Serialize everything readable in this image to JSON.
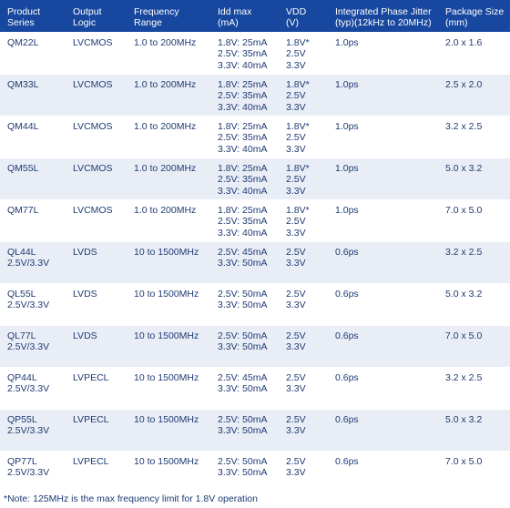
{
  "headers": [
    "Product\nSeries",
    "Output\nLogic",
    "Frequency\nRange",
    "Idd max\n(mA)",
    "VDD\n(V)",
    "Integrated Phase Jitter\n(typ)(12kHz to 20MHz)",
    "Package Size\n(mm)"
  ],
  "rows": [
    {
      "series": "QM22L",
      "logic": "LVCMOS",
      "range": "1.0 to 200MHz",
      "idd": "1.8V: 25mA\n2.5V: 35mA\n3.3V: 40mA",
      "vdd": "1.8V*\n2.5V\n3.3V",
      "jitter": "1.0ps",
      "pkg": "2.0 x 1.6"
    },
    {
      "series": "QM33L",
      "logic": "LVCMOS",
      "range": "1.0 to 200MHz",
      "idd": "1.8V: 25mA\n2.5V: 35mA\n3.3V: 40mA",
      "vdd": "1.8V*\n2.5V\n3.3V",
      "jitter": "1.0ps",
      "pkg": "2.5 x 2.0"
    },
    {
      "series": "QM44L",
      "logic": "LVCMOS",
      "range": "1.0 to 200MHz",
      "idd": "1.8V: 25mA\n2.5V: 35mA\n3.3V: 40mA",
      "vdd": "1.8V*\n2.5V\n3.3V",
      "jitter": "1.0ps",
      "pkg": "3.2 x 2.5"
    },
    {
      "series": "QM55L",
      "logic": "LVCMOS",
      "range": "1.0 to 200MHz",
      "idd": "1.8V: 25mA\n2.5V: 35mA\n3.3V: 40mA",
      "vdd": "1.8V*\n2.5V\n3.3V",
      "jitter": "1.0ps",
      "pkg": "5.0 x 3.2"
    },
    {
      "series": "QM77L",
      "logic": "LVCMOS",
      "range": "1.0 to 200MHz",
      "idd": "1.8V: 25mA\n2.5V: 35mA\n3.3V: 40mA",
      "vdd": "1.8V*\n2.5V\n3.3V",
      "jitter": "1.0ps",
      "pkg": "7.0 x 5.0"
    },
    {
      "series": "QL44L\n2.5V/3.3V",
      "logic": "LVDS",
      "range": "10 to 1500MHz",
      "idd": "2.5V: 45mA\n3.3V: 50mA",
      "vdd": "2.5V\n3.3V",
      "jitter": "0.6ps",
      "pkg": "3.2 x 2.5"
    },
    {
      "series": "QL55L\n2.5V/3.3V",
      "logic": "LVDS",
      "range": "10 to 1500MHz",
      "idd": "2.5V: 50mA\n3.3V: 50mA",
      "vdd": "2.5V\n3.3V",
      "jitter": "0.6ps",
      "pkg": "5.0 x 3.2"
    },
    {
      "series": "QL77L\n2.5V/3.3V",
      "logic": "LVDS",
      "range": "10 to 1500MHz",
      "idd": "2.5V: 50mA\n3.3V: 50mA",
      "vdd": "2.5V\n3.3V",
      "jitter": "0.6ps",
      "pkg": "7.0 x 5.0"
    },
    {
      "series": "QP44L\n2.5V/3.3V",
      "logic": "LVPECL",
      "range": "10 to 1500MHz",
      "idd": "2.5V: 45mA\n3.3V: 50mA",
      "vdd": "2.5V\n3.3V",
      "jitter": "0.6ps",
      "pkg": "3.2 x 2.5"
    },
    {
      "series": "QP55L\n2.5V/3.3V",
      "logic": "LVPECL",
      "range": "10 to 1500MHz",
      "idd": "2.5V: 50mA\n3.3V: 50mA",
      "vdd": "2.5V\n3.3V",
      "jitter": "0.6ps",
      "pkg": "5.0 x 3.2"
    },
    {
      "series": "QP77L\n2.5V/3.3V",
      "logic": "LVPECL",
      "range": "10 to 1500MHz",
      "idd": "2.5V: 50mA\n3.3V: 50mA",
      "vdd": "2.5V\n3.3V",
      "jitter": "0.6ps",
      "pkg": "7.0 x 5.0"
    }
  ],
  "note": "*Note: 125MHz is the max frequency limit for 1.8V operation",
  "colors": {
    "header_bg": "#17479e",
    "header_text": "#ffffff",
    "stripe": "#e9eef6",
    "body_text": "#1f3a73"
  }
}
